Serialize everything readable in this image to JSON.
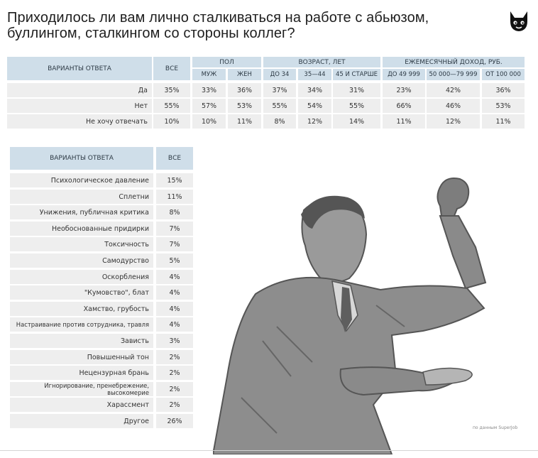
{
  "title": "Приходилось ли вам лично сталкиваться на работе с абьюзом, буллингом, сталкингом со стороны коллег?",
  "source_note": "по данным SuperJob",
  "colors": {
    "header": "#cfdee9",
    "row": "#eeeeee",
    "figure": "#7d7d7d"
  },
  "chart_data": [
    {
      "type": "table",
      "header": {
        "answer": "ВАРИАНТЫ ОТВЕТА",
        "all": "ВСЕ",
        "groups": [
          "ПОЛ",
          "ВОЗРАСТ, ЛЕТ",
          "ЕЖЕМЕСЯЧНЫЙ ДОХОД, РУБ."
        ],
        "columns": [
          "МУЖ",
          "ЖЕН",
          "ДО 34",
          "35—44",
          "45 И СТАРШЕ",
          "ДО 49 999",
          "50 000—79 999",
          "ОТ 100 000"
        ]
      },
      "rows": [
        {
          "label": "Да",
          "values": [
            "35%",
            "33%",
            "36%",
            "37%",
            "34%",
            "31%",
            "23%",
            "42%",
            "36%"
          ]
        },
        {
          "label": "Нет",
          "values": [
            "55%",
            "57%",
            "53%",
            "55%",
            "54%",
            "55%",
            "66%",
            "46%",
            "53%"
          ]
        },
        {
          "label": "Не хочу отвечать",
          "values": [
            "10%",
            "10%",
            "11%",
            "8%",
            "12%",
            "14%",
            "11%",
            "12%",
            "11%"
          ]
        }
      ]
    },
    {
      "type": "table",
      "header": {
        "answer": "ВАРИАНТЫ ОТВЕТА",
        "all": "ВСЕ"
      },
      "rows": [
        {
          "label": "Психологическое давление",
          "value": "15%"
        },
        {
          "label": "Сплетни",
          "value": "11%"
        },
        {
          "label": "Унижения, публичная критика",
          "value": "8%"
        },
        {
          "label": "Необоснованные придирки",
          "value": "7%"
        },
        {
          "label": "Токсичность",
          "value": "7%"
        },
        {
          "label": "Самодурство",
          "value": "5%"
        },
        {
          "label": "Оскорбления",
          "value": "4%"
        },
        {
          "label": "\"Кумовство\", блат",
          "value": "4%"
        },
        {
          "label": "Хамство, грубость",
          "value": "4%"
        },
        {
          "label": "Настраивание против сотрудника, травля",
          "value": "4%"
        },
        {
          "label": "Зависть",
          "value": "3%"
        },
        {
          "label": "Повышенный тон",
          "value": "2%"
        },
        {
          "label": "Нецензурная брань",
          "value": "2%"
        },
        {
          "label": "Игнорирование, пренебрежение, высокомерие",
          "value": "2%"
        },
        {
          "label": "Харассмент",
          "value": "2%"
        },
        {
          "label": "Другое",
          "value": "26%"
        }
      ]
    }
  ]
}
